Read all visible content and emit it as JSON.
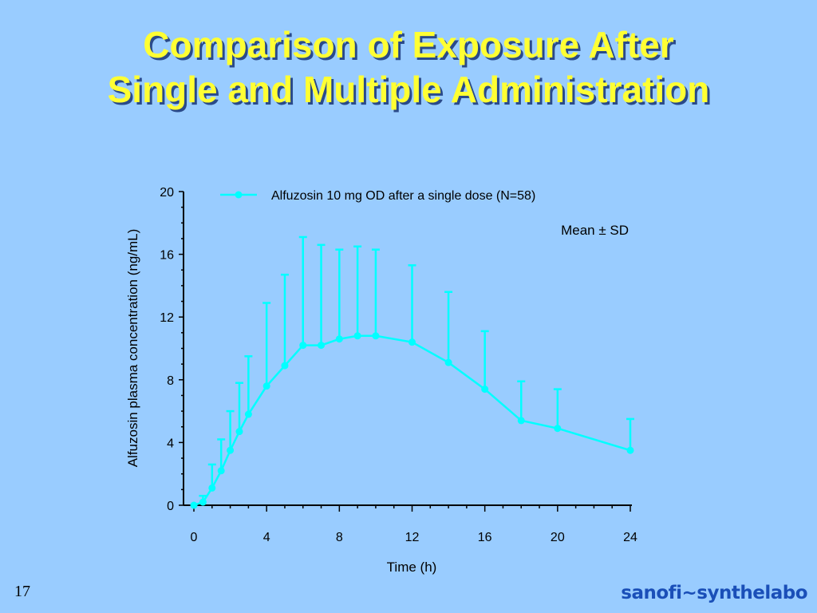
{
  "slide": {
    "title_line1": "Comparison of Exposure After",
    "title_line2": "Single and Multiple Administration",
    "page_number": "17",
    "logo_text": "sanofi~synthelabo"
  },
  "colors": {
    "background": "#99ccff",
    "title": "#ffff33",
    "series": "#00ffff",
    "logo": "#1a4fb8"
  },
  "chart_data": {
    "type": "line",
    "title": "",
    "xlabel": "Time (h)",
    "ylabel": "Alfuzosin plasma concentration (ng/mL)",
    "xlim": [
      0,
      24
    ],
    "ylim": [
      0,
      20
    ],
    "xticks": [
      0,
      4,
      8,
      12,
      16,
      20,
      24
    ],
    "yticks": [
      0,
      4,
      8,
      12,
      16,
      20
    ],
    "grid": false,
    "legend_position": "top",
    "annotation": "Mean ± SD",
    "series": [
      {
        "name": "Alfuzosin 10 mg OD after a single dose (N=58)",
        "x": [
          0,
          0.5,
          1,
          1.5,
          2,
          2.5,
          3,
          4,
          5,
          6,
          7,
          8,
          9,
          10,
          12,
          14,
          16,
          18,
          20,
          24
        ],
        "y": [
          0,
          0.2,
          1.1,
          2.2,
          3.5,
          4.7,
          5.8,
          7.6,
          8.9,
          10.2,
          10.2,
          10.6,
          10.8,
          10.8,
          10.4,
          9.1,
          7.4,
          5.4,
          4.9,
          3.5
        ],
        "sd_upper": [
          0,
          0.6,
          2.6,
          4.2,
          6.0,
          7.8,
          9.5,
          12.9,
          14.7,
          17.1,
          16.6,
          16.3,
          16.5,
          16.3,
          15.3,
          13.6,
          11.1,
          7.9,
          7.4,
          5.5
        ]
      }
    ]
  }
}
